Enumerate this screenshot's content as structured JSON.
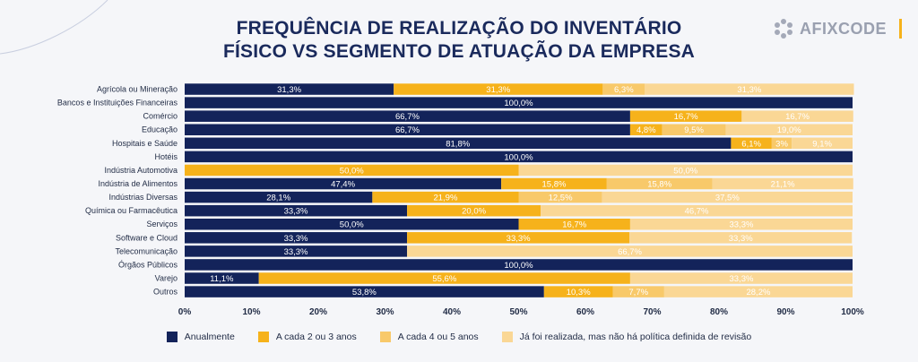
{
  "title_line1": "FREQUÊNCIA DE REALIZAÇÃO DO INVENTÁRIO",
  "title_line2": "FÍSICO VS SEGMENTO DE ATUAÇÃO DA EMPRESA",
  "logo": {
    "text": "AFIXCODE",
    "icon": "afixcode-logo-icon"
  },
  "colors": {
    "Anualmente": "#13235a",
    "A cada 2 ou 3 anos": "#f6b21b",
    "A cada 4 ou 5 anos": "#f8c96a",
    "Já foi realizada, mas não há política definida de revisão": "#fad795",
    "accent": "#f6b21b"
  },
  "chart_data": {
    "type": "bar",
    "orientation": "horizontal-stacked",
    "xlim": [
      0,
      100
    ],
    "x_ticks": [
      "0%",
      "10%",
      "20%",
      "30%",
      "40%",
      "50%",
      "60%",
      "70%",
      "80%",
      "90%",
      "100%"
    ],
    "legend_position": "bottom",
    "categories": [
      "Agrícola ou Mineração",
      "Bancos e Instituições Financeiras",
      "Comércio",
      "Educação",
      "Hospitais e Saúde",
      "Hotéis",
      "Indústria Automotiva",
      "Indústria de Alimentos",
      "Indústrias Diversas",
      "Química ou Farmacêutica",
      "Serviços",
      "Software e Cloud",
      "Telecomunicação",
      "Órgãos Públicos",
      "Varejo",
      "Outros"
    ],
    "series": [
      {
        "name": "Anualmente",
        "values": [
          31.3,
          100.0,
          66.7,
          66.7,
          81.8,
          100.0,
          0,
          47.4,
          28.1,
          33.3,
          50.0,
          33.3,
          33.3,
          100.0,
          11.1,
          53.8
        ],
        "labels": [
          "31,3%",
          "100,0%",
          "66,7%",
          "66,7%",
          "81,8%",
          "100,0%",
          "",
          "47,4%",
          "28,1%",
          "33,3%",
          "50,0%",
          "33,3%",
          "33,3%",
          "100,0%",
          "11,1%",
          "53,8%"
        ]
      },
      {
        "name": "A cada 2 ou 3 anos",
        "values": [
          31.3,
          0,
          16.7,
          4.8,
          6.1,
          0,
          50.0,
          15.8,
          21.9,
          20.0,
          16.7,
          33.3,
          0,
          0,
          55.6,
          10.3
        ],
        "labels": [
          "31,3%",
          "",
          "16,7%",
          "4,8%",
          "6,1%",
          "",
          "50,0%",
          "15,8%",
          "21,9%",
          "20,0%",
          "16,7%",
          "33,3%",
          "",
          "",
          "55,6%",
          "10,3%"
        ]
      },
      {
        "name": "A cada 4 ou 5 anos",
        "values": [
          6.3,
          0,
          0,
          9.5,
          3.0,
          0,
          0,
          15.8,
          12.5,
          0,
          0,
          0,
          0,
          0,
          0,
          7.7
        ],
        "labels": [
          "6,3%",
          "",
          "",
          "9,5%",
          "3%",
          "",
          "",
          "15,8%",
          "12,5%",
          "",
          "",
          "",
          "",
          "",
          "",
          "7,7%"
        ]
      },
      {
        "name": "Já foi realizada, mas não há política definida de revisão",
        "values": [
          31.3,
          0,
          16.7,
          19.0,
          9.1,
          0,
          50.0,
          21.1,
          37.5,
          46.7,
          33.3,
          33.3,
          66.7,
          0,
          33.3,
          28.2
        ],
        "labels": [
          "31,3%",
          "",
          "16,7%",
          "19,0%",
          "9,1%",
          "",
          "50,0%",
          "21,1%",
          "37,5%",
          "46,7%",
          "33,3%",
          "33,3%",
          "66,7%",
          "",
          "33,3%",
          "28,2%"
        ]
      }
    ]
  }
}
